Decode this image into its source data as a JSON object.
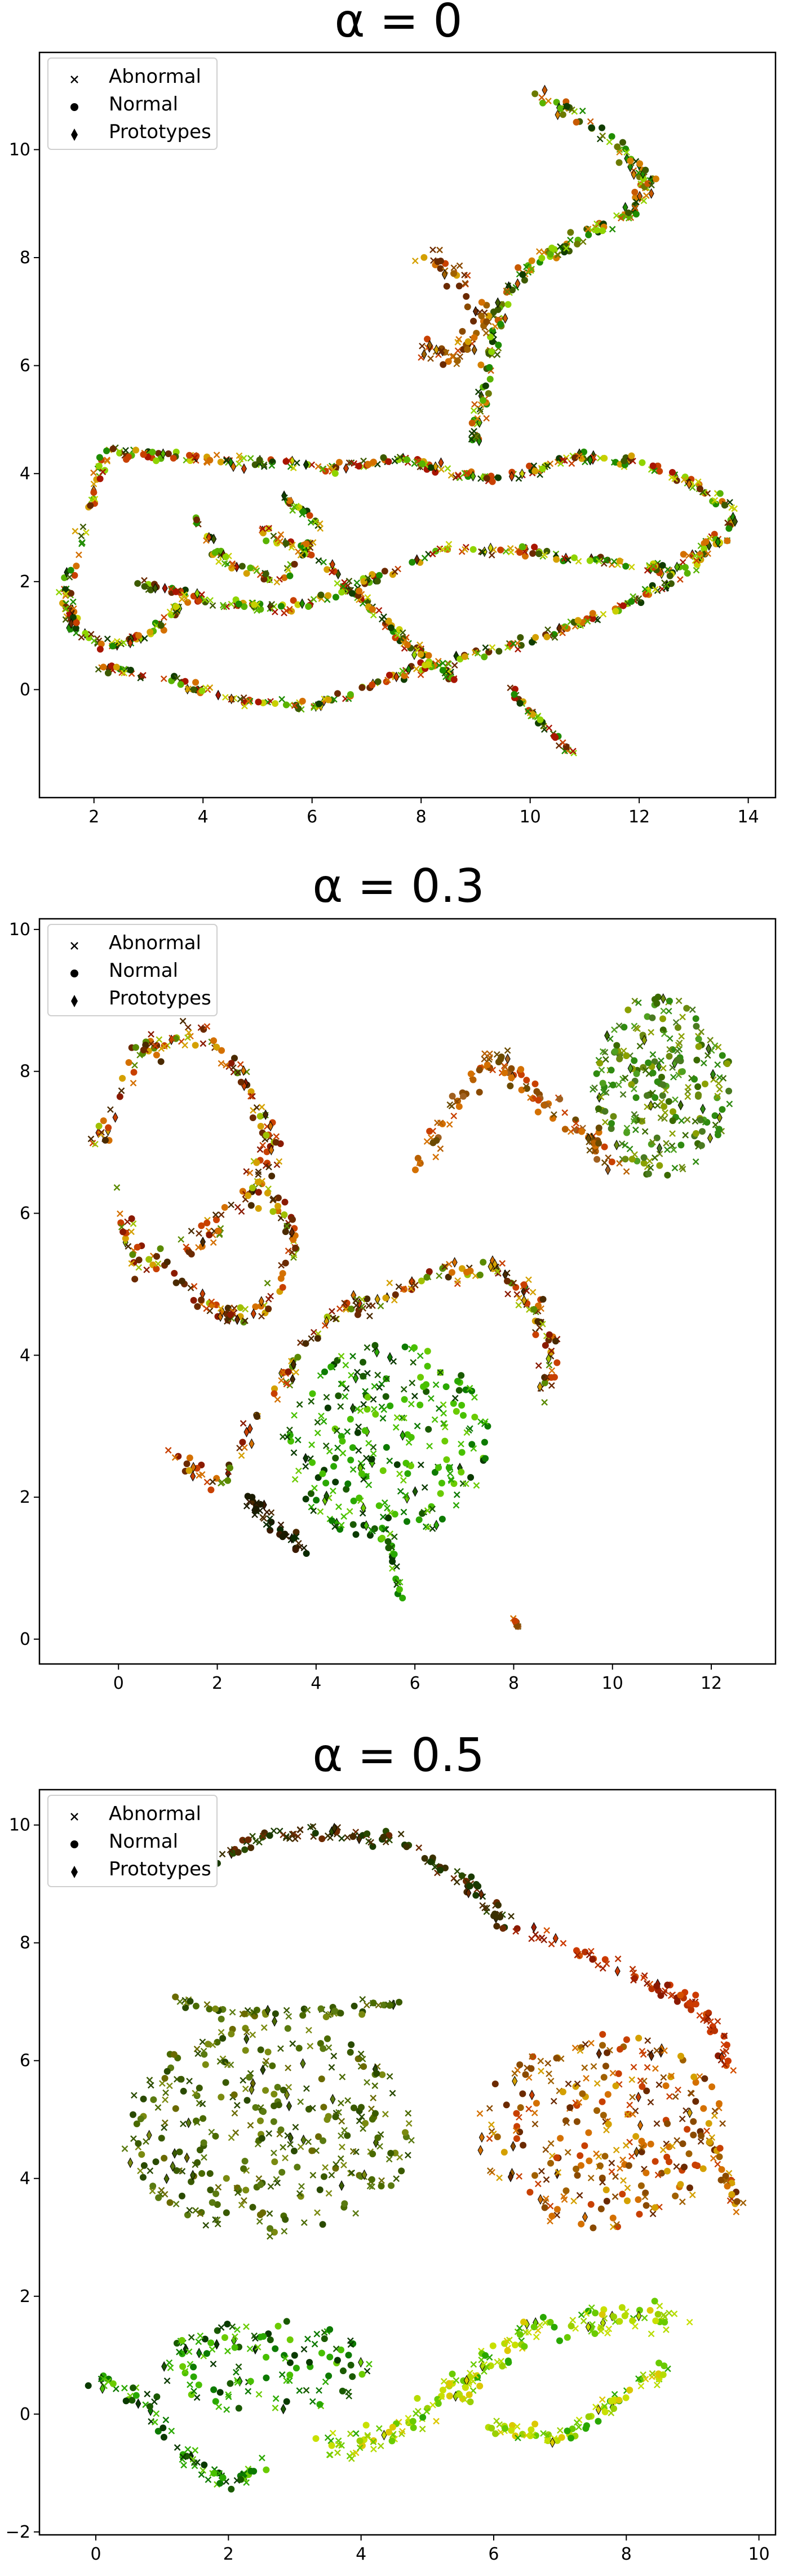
{
  "chart_data": [
    {
      "type": "scatter",
      "title": "α = 0",
      "xlim": [
        1.0,
        14.5
      ],
      "ylim": [
        -2.0,
        11.8
      ],
      "xticks": [
        2,
        4,
        6,
        8,
        10,
        12,
        14
      ],
      "yticks": [
        0,
        2,
        4,
        6,
        8,
        10
      ],
      "legend": {
        "placement": "top-left",
        "entries": [
          {
            "label": "Abnormal",
            "marker": "x"
          },
          {
            "label": "Normal",
            "marker": "circle"
          },
          {
            "label": "Prototypes",
            "marker": "diamond"
          }
        ]
      },
      "colors": [
        "#1f8c00",
        "#59b300",
        "#8fd400",
        "#c8d000",
        "#d4a000",
        "#d47000",
        "#c84000",
        "#a81500",
        "#6b2a00",
        "#3d5a00",
        "#113d00"
      ],
      "clusters": [
        {
          "kind": "polyline",
          "pts": [
            [
              10.2,
              11.0
            ],
            [
              10.9,
              10.6
            ],
            [
              11.5,
              10.2
            ],
            [
              12.2,
              9.4
            ],
            [
              11.8,
              8.8
            ],
            [
              11.0,
              8.4
            ],
            [
              10.2,
              8.0
            ],
            [
              9.6,
              7.4
            ],
            [
              9.3,
              6.4
            ],
            [
              9.1,
              5.4
            ],
            [
              9.0,
              4.6
            ]
          ],
          "n": 220,
          "spread": 0.22,
          "cmap": "green_orange"
        },
        {
          "kind": "polyline",
          "pts": [
            [
              8.0,
              8.0
            ],
            [
              8.8,
              7.6
            ],
            [
              9.2,
              6.8
            ],
            [
              8.6,
              6.1
            ],
            [
              8.0,
              6.4
            ]
          ],
          "n": 80,
          "spread": 0.3,
          "cmap": "orange"
        },
        {
          "kind": "polyline",
          "pts": [
            [
              2.2,
              4.4
            ],
            [
              3.6,
              4.3
            ],
            [
              5.0,
              4.2
            ],
            [
              6.4,
              4.1
            ],
            [
              7.6,
              4.3
            ],
            [
              8.6,
              4.0
            ],
            [
              9.6,
              3.9
            ],
            [
              10.8,
              4.3
            ],
            [
              12.0,
              4.2
            ],
            [
              13.0,
              3.8
            ],
            [
              13.8,
              3.3
            ]
          ],
          "n": 260,
          "spread": 0.14,
          "cmap": "mixed"
        },
        {
          "kind": "polyline",
          "pts": [
            [
              2.2,
              4.4
            ],
            [
              1.8,
              3.0
            ],
            [
              1.5,
              1.8
            ],
            [
              1.6,
              1.2
            ],
            [
              2.2,
              0.8
            ],
            [
              3.0,
              1.0
            ],
            [
              3.6,
              1.6
            ]
          ],
          "n": 130,
          "spread": 0.16,
          "cmap": "mixed"
        },
        {
          "kind": "polyline",
          "pts": [
            [
              2.8,
              2.0
            ],
            [
              4.2,
              1.6
            ],
            [
              5.6,
              1.5
            ],
            [
              7.0,
              2.0
            ],
            [
              8.4,
              2.6
            ],
            [
              9.8,
              2.6
            ],
            [
              11.2,
              2.4
            ],
            [
              12.6,
              2.2
            ],
            [
              13.8,
              3.2
            ]
          ],
          "n": 220,
          "spread": 0.15,
          "cmap": "mixed"
        },
        {
          "kind": "polyline",
          "pts": [
            [
              2.0,
              0.4
            ],
            [
              3.4,
              0.2
            ],
            [
              4.6,
              -0.2
            ],
            [
              6.0,
              -0.3
            ],
            [
              7.4,
              0.2
            ],
            [
              8.8,
              0.6
            ],
            [
              10.0,
              0.9
            ],
            [
              11.4,
              1.4
            ],
            [
              12.6,
              2.0
            ],
            [
              13.6,
              2.8
            ]
          ],
          "n": 230,
          "spread": 0.14,
          "cmap": "mixed"
        },
        {
          "kind": "polyline",
          "pts": [
            [
              5.0,
              3.0
            ],
            [
              6.2,
              2.4
            ],
            [
              7.0,
              1.6
            ],
            [
              7.8,
              0.8
            ],
            [
              8.6,
              0.2
            ]
          ],
          "n": 120,
          "spread": 0.14,
          "cmap": "mixed"
        },
        {
          "kind": "polyline",
          "pts": [
            [
              3.8,
              3.2
            ],
            [
              4.4,
              2.4
            ],
            [
              5.4,
              2.0
            ],
            [
              6.2,
              3.0
            ],
            [
              5.4,
              3.6
            ]
          ],
          "n": 80,
          "spread": 0.14,
          "cmap": "mixed"
        },
        {
          "kind": "polyline",
          "pts": [
            [
              9.6,
              0.0
            ],
            [
              10.2,
              -0.6
            ],
            [
              10.8,
              -1.2
            ]
          ],
          "n": 40,
          "spread": 0.1,
          "cmap": "mixed"
        }
      ]
    },
    {
      "type": "scatter",
      "title": "α = 0.3",
      "xlim": [
        -1.6,
        13.3
      ],
      "ylim": [
        -0.35,
        10.15
      ],
      "xticks": [
        0,
        2,
        4,
        6,
        8,
        10,
        12
      ],
      "yticks": [
        0,
        2,
        4,
        6,
        8,
        10
      ],
      "legend": {
        "placement": "top-left",
        "entries": [
          {
            "label": "Abnormal",
            "marker": "x"
          },
          {
            "label": "Normal",
            "marker": "circle"
          },
          {
            "label": "Prototypes",
            "marker": "diamond"
          }
        ]
      },
      "colors": [
        "#0a3a00",
        "#1f8c00",
        "#48c000",
        "#8fd400",
        "#c8d000",
        "#d49800",
        "#d46000",
        "#b82a00",
        "#7a1800",
        "#4a2a00"
      ],
      "clusters": [
        {
          "kind": "blob",
          "cx": 11.0,
          "cy": 7.8,
          "rx": 1.4,
          "ry": 1.3,
          "n": 250,
          "cmap": "green_olive"
        },
        {
          "kind": "polyline",
          "pts": [
            [
              6.0,
              6.6
            ],
            [
              6.8,
              7.6
            ],
            [
              7.6,
              8.2
            ],
            [
              8.6,
              7.6
            ],
            [
              9.6,
              7.0
            ],
            [
              10.2,
              6.6
            ]
          ],
          "n": 120,
          "spread": 0.25,
          "cmap": "orange_brown"
        },
        {
          "kind": "polyline",
          "pts": [
            [
              -0.4,
              7.0
            ],
            [
              0.4,
              8.2
            ],
            [
              1.4,
              8.6
            ],
            [
              2.4,
              8.0
            ],
            [
              3.2,
              7.0
            ],
            [
              2.6,
              6.2
            ],
            [
              1.6,
              5.6
            ],
            [
              0.4,
              5.2
            ],
            [
              0.0,
              6.2
            ]
          ],
          "n": 200,
          "spread": 0.3,
          "cmap": "autumn"
        },
        {
          "kind": "polyline",
          "pts": [
            [
              1.0,
              5.2
            ],
            [
              2.0,
              4.6
            ],
            [
              3.0,
              4.6
            ],
            [
              3.6,
              5.6
            ],
            [
              3.0,
              6.4
            ]
          ],
          "n": 90,
          "spread": 0.25,
          "cmap": "autumn"
        },
        {
          "kind": "polyline",
          "pts": [
            [
              1.0,
              2.6
            ],
            [
              2.0,
              2.2
            ],
            [
              3.0,
              3.2
            ],
            [
              3.6,
              4.0
            ],
            [
              4.4,
              4.6
            ],
            [
              5.4,
              4.8
            ],
            [
              6.6,
              5.2
            ],
            [
              7.6,
              5.2
            ],
            [
              8.4,
              4.8
            ],
            [
              8.8,
              4.0
            ],
            [
              8.6,
              3.4
            ]
          ],
          "n": 200,
          "spread": 0.25,
          "cmap": "autumn"
        },
        {
          "kind": "blob",
          "cx": 5.4,
          "cy": 2.8,
          "rx": 2.1,
          "ry": 1.4,
          "n": 280,
          "cmap": "greens"
        },
        {
          "kind": "polyline",
          "pts": [
            [
              2.6,
              2.0
            ],
            [
              3.2,
              1.6
            ],
            [
              3.8,
              1.2
            ]
          ],
          "n": 40,
          "spread": 0.2,
          "cmap": "dark"
        },
        {
          "kind": "polyline",
          "pts": [
            [
              5.4,
              1.6
            ],
            [
              5.6,
              1.0
            ],
            [
              5.7,
              0.5
            ]
          ],
          "n": 20,
          "spread": 0.1,
          "cmap": "greens"
        },
        {
          "kind": "polyline",
          "pts": [
            [
              8.0,
              0.3
            ],
            [
              8.1,
              0.15
            ]
          ],
          "n": 8,
          "spread": 0.04,
          "cmap": "orange_brown"
        }
      ]
    },
    {
      "type": "scatter",
      "title": "α = 0.5",
      "xlim": [
        -0.85,
        10.25
      ],
      "ylim": [
        -2.05,
        10.6
      ],
      "xticks": [
        0,
        2,
        4,
        6,
        8,
        10
      ],
      "yticks": [
        -2,
        0,
        2,
        4,
        6,
        8,
        10
      ],
      "legend": {
        "placement": "top-left",
        "entries": [
          {
            "label": "Abnormal",
            "marker": "x"
          },
          {
            "label": "Normal",
            "marker": "circle"
          },
          {
            "label": "Prototypes",
            "marker": "diamond"
          }
        ]
      },
      "colors": [
        "#1a3a00",
        "#0d7a00",
        "#2aa800",
        "#6acb00",
        "#b6dc00",
        "#dcc800",
        "#d49000",
        "#cc6000",
        "#b83200",
        "#8a1a00",
        "#4a2a00"
      ],
      "clusters": [
        {
          "kind": "polyline",
          "pts": [
            [
              1.8,
              9.4
            ],
            [
              2.6,
              9.8
            ],
            [
              3.6,
              9.9
            ],
            [
              4.6,
              9.7
            ],
            [
              5.6,
              9.0
            ],
            [
              6.2,
              8.3
            ]
          ],
          "n": 120,
          "spread": 0.22,
          "cmap": "dark_brown"
        },
        {
          "kind": "polyline",
          "pts": [
            [
              6.2,
              8.3
            ],
            [
              7.2,
              7.9
            ],
            [
              8.2,
              7.4
            ],
            [
              9.0,
              7.0
            ],
            [
              9.4,
              6.4
            ],
            [
              9.6,
              5.8
            ]
          ],
          "n": 90,
          "spread": 0.2,
          "cmap": "red"
        },
        {
          "kind": "blob",
          "cx": 7.6,
          "cy": 4.8,
          "rx": 1.9,
          "ry": 1.7,
          "n": 280,
          "cmap": "orange"
        },
        {
          "kind": "blob",
          "cx": 2.6,
          "cy": 4.8,
          "rx": 2.2,
          "ry": 1.8,
          "n": 330,
          "cmap": "olive"
        },
        {
          "kind": "polyline",
          "pts": [
            [
              1.2,
              7.0
            ],
            [
              2.2,
              6.8
            ],
            [
              3.4,
              6.8
            ],
            [
              4.6,
              7.0
            ]
          ],
          "n": 60,
          "spread": 0.2,
          "cmap": "olive"
        },
        {
          "kind": "polyline",
          "pts": [
            [
              0.0,
              0.6
            ],
            [
              0.8,
              0.2
            ],
            [
              1.4,
              -0.8
            ],
            [
              2.0,
              -1.2
            ],
            [
              2.6,
              -0.8
            ]
          ],
          "n": 80,
          "spread": 0.22,
          "cmap": "greens"
        },
        {
          "kind": "blob",
          "cx": 2.6,
          "cy": 0.8,
          "rx": 1.6,
          "ry": 0.8,
          "n": 130,
          "cmap": "greens"
        },
        {
          "kind": "polyline",
          "pts": [
            [
              3.4,
              -0.6
            ],
            [
              4.6,
              -0.3
            ],
            [
              5.6,
              0.6
            ],
            [
              6.6,
              1.4
            ],
            [
              7.8,
              1.6
            ],
            [
              8.8,
              1.6
            ]
          ],
          "n": 190,
          "spread": 0.35,
          "cmap": "lime_yellow"
        },
        {
          "kind": "polyline",
          "pts": [
            [
              6.0,
              -0.2
            ],
            [
              7.0,
              -0.4
            ],
            [
              7.8,
              0.2
            ],
            [
              8.6,
              0.8
            ]
          ],
          "n": 80,
          "spread": 0.2,
          "cmap": "lime_yellow"
        },
        {
          "kind": "polyline",
          "pts": [
            [
              9.2,
              4.8
            ],
            [
              9.5,
              4.0
            ],
            [
              9.7,
              3.4
            ]
          ],
          "n": 30,
          "spread": 0.12,
          "cmap": "orange"
        }
      ]
    }
  ]
}
